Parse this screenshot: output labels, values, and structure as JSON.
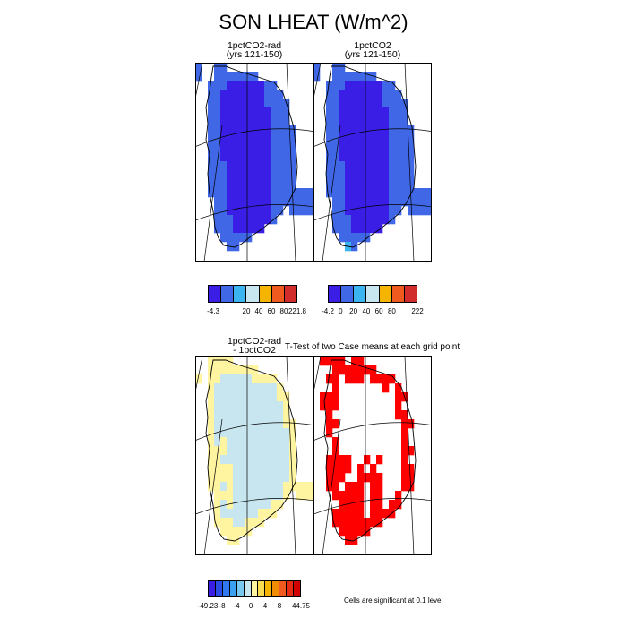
{
  "figure": {
    "title": "SON LHEAT (W/m^2)",
    "ttest_title": "T-Test of two Case means at each grid point",
    "significance_note": "Cells are significant at 0.1 level"
  },
  "chart_data": [
    {
      "type": "heatmap",
      "panel": "1pctCO2-rad",
      "title_line1": "1pctCO2-rad",
      "title_line2": "(yrs 121-150)",
      "region": "Greenland",
      "range": [
        -4.3,
        221.8
      ],
      "colorbar_labels": [
        "-4.3",
        "20",
        "40",
        "60",
        "80",
        "221.8"
      ],
      "colorbar_colors": [
        "#3b1ee6",
        "#4068e6",
        "#3cb4f0",
        "#c8e6f0",
        "#f5b400",
        "#f05a1e",
        "#d22d2d"
      ],
      "dominant_levels": [
        "#3b1ee6",
        "#4068e6"
      ]
    },
    {
      "type": "heatmap",
      "panel": "1pctCO2",
      "title_line1": "1pctCO2",
      "title_line2": "(yrs 121-150)",
      "region": "Greenland",
      "range": [
        -4.2,
        222
      ],
      "colorbar_labels": [
        "-4.2",
        "0",
        "20",
        "40",
        "60",
        "80",
        "222"
      ],
      "colorbar_colors": [
        "#3b1ee6",
        "#4068e6",
        "#3cb4f0",
        "#c8e6f0",
        "#f5b400",
        "#f05a1e",
        "#d22d2d"
      ],
      "dominant_levels": [
        "#3b1ee6",
        "#4068e6"
      ]
    },
    {
      "type": "heatmap",
      "panel": "difference",
      "title_line1": "1pctCO2-rad",
      "title_line2": "- 1pctCO2",
      "region": "Greenland",
      "range": [
        -49.23,
        44.75
      ],
      "colorbar_labels": [
        "-49.23",
        "-8",
        "-4",
        "0",
        "4",
        "8",
        "44.75"
      ],
      "colorbar_colors": [
        "#3b1ee6",
        "#2a4be6",
        "#2f78f0",
        "#3ca0f0",
        "#78c8f0",
        "#c8e6f0",
        "#fff5a0",
        "#fadc50",
        "#f5b400",
        "#f08c00",
        "#f05a1e",
        "#e62d14",
        "#d20000"
      ],
      "dominant_levels": [
        "#c8e6f0",
        "#fff5a0"
      ]
    },
    {
      "type": "heatmap",
      "panel": "ttest",
      "title_line1": "T-Test of two Case means at each grid point",
      "region": "Greenland",
      "legend": "Cells are significant at 0.1 level",
      "significant_color": "#ff0000"
    }
  ]
}
